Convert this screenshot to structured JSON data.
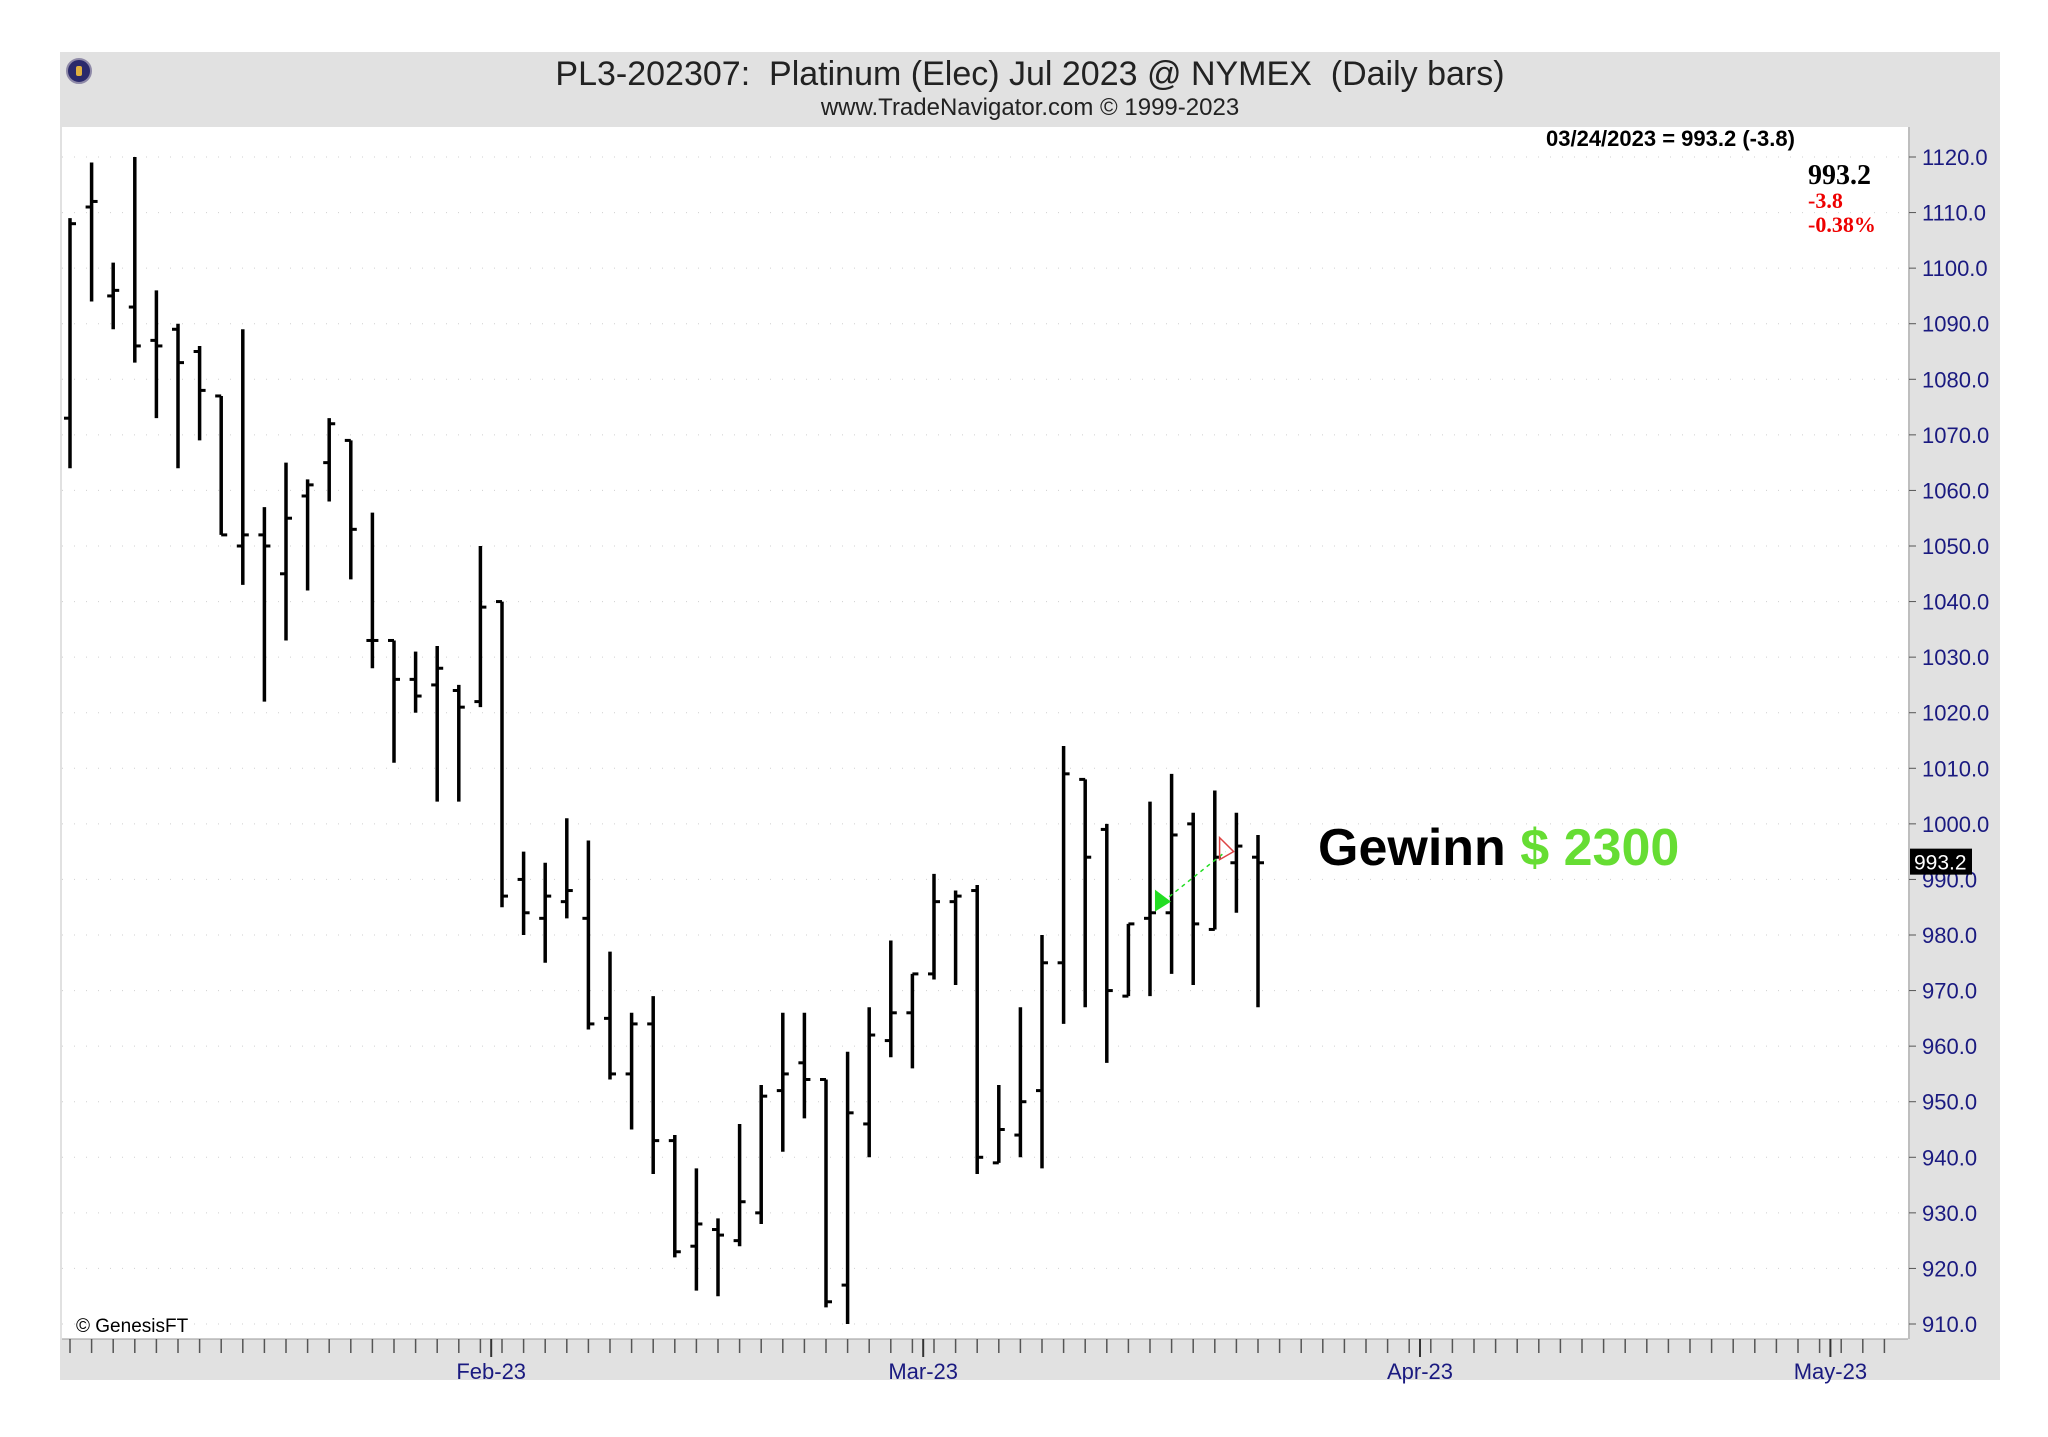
{
  "header": {
    "title": "PL3-202307:  Platinum (Elec) Jul 2023 @ NYMEX  (Daily bars)",
    "subtitle": "www.TradeNavigator.com © 1999-2023"
  },
  "readout": {
    "text": "03/24/2023 = 993.2 (-3.8)",
    "last_price": "993.2",
    "change": "-3.8",
    "change_pct": "-0.38%",
    "price_tag": "993.2"
  },
  "credit": "© GenesisFT",
  "annotation": {
    "label": "Gewinn",
    "value": "$ 2300"
  },
  "colors": {
    "bars": "#000000",
    "axis_text": "#1a1a80",
    "profit": "#66dd33",
    "negative": "#ee0000",
    "entry_marker": "#22dd22",
    "exit_marker": "#dd4444"
  },
  "chart_data": {
    "type": "ohlc",
    "title": "PL3-202307:  Platinum (Elec) Jul 2023 @ NYMEX  (Daily bars)",
    "xlabel": "",
    "ylabel": "",
    "ylim": [
      907,
      1126
    ],
    "y_ticks": [
      "1120.0",
      "1110.0",
      "1100.0",
      "1090.0",
      "1080.0",
      "1070.0",
      "1060.0",
      "1050.0",
      "1040.0",
      "1030.0",
      "1020.0",
      "1010.0",
      "1000.0",
      "990.0",
      "980.0",
      "970.0",
      "960.0",
      "950.0",
      "940.0",
      "930.0",
      "920.0",
      "910.0"
    ],
    "x_labels": [
      {
        "label": "Feb-23",
        "index": 19.5
      },
      {
        "label": "Mar-23",
        "index": 39.5
      },
      {
        "label": "Apr-23",
        "index": 62.5
      },
      {
        "label": "May-23",
        "index": 81.5
      }
    ],
    "grid": true,
    "bars": [
      {
        "o": 1073,
        "h": 1109,
        "l": 1064,
        "c": 1108
      },
      {
        "o": 1111,
        "h": 1119,
        "l": 1094,
        "c": 1112
      },
      {
        "o": 1095,
        "h": 1101,
        "l": 1089,
        "c": 1096
      },
      {
        "o": 1093,
        "h": 1120,
        "l": 1083,
        "c": 1086
      },
      {
        "o": 1087,
        "h": 1096,
        "l": 1073,
        "c": 1086
      },
      {
        "o": 1089,
        "h": 1090,
        "l": 1064,
        "c": 1083
      },
      {
        "o": 1085,
        "h": 1086,
        "l": 1069,
        "c": 1078
      },
      {
        "o": 1077,
        "h": 1077,
        "l": 1052,
        "c": 1052
      },
      {
        "o": 1050,
        "h": 1089,
        "l": 1043,
        "c": 1052
      },
      {
        "o": 1052,
        "h": 1057,
        "l": 1022,
        "c": 1050
      },
      {
        "o": 1045,
        "h": 1065,
        "l": 1033,
        "c": 1055
      },
      {
        "o": 1059,
        "h": 1062,
        "l": 1042,
        "c": 1061
      },
      {
        "o": 1065,
        "h": 1073,
        "l": 1058,
        "c": 1072
      },
      {
        "o": 1069,
        "h": 1069,
        "l": 1044,
        "c": 1053
      },
      {
        "o": 1033,
        "h": 1056,
        "l": 1028,
        "c": 1033
      },
      {
        "o": 1033,
        "h": 1033,
        "l": 1011,
        "c": 1026
      },
      {
        "o": 1026,
        "h": 1031,
        "l": 1020,
        "c": 1023
      },
      {
        "o": 1025,
        "h": 1032,
        "l": 1004,
        "c": 1028
      },
      {
        "o": 1024,
        "h": 1025,
        "l": 1004,
        "c": 1021
      },
      {
        "o": 1022,
        "h": 1050,
        "l": 1021,
        "c": 1039
      },
      {
        "o": 1040,
        "h": 1040,
        "l": 985,
        "c": 987
      },
      {
        "o": 990,
        "h": 995,
        "l": 980,
        "c": 984
      },
      {
        "o": 983,
        "h": 993,
        "l": 975,
        "c": 987
      },
      {
        "o": 986,
        "h": 1001,
        "l": 983,
        "c": 988
      },
      {
        "o": 983,
        "h": 997,
        "l": 963,
        "c": 964
      },
      {
        "o": 965,
        "h": 977,
        "l": 954,
        "c": 955
      },
      {
        "o": 955,
        "h": 966,
        "l": 945,
        "c": 964
      },
      {
        "o": 964,
        "h": 969,
        "l": 937,
        "c": 943
      },
      {
        "o": 943,
        "h": 944,
        "l": 922,
        "c": 923
      },
      {
        "o": 924,
        "h": 938,
        "l": 916,
        "c": 928
      },
      {
        "o": 927,
        "h": 929,
        "l": 915,
        "c": 926
      },
      {
        "o": 925,
        "h": 946,
        "l": 924,
        "c": 932
      },
      {
        "o": 930,
        "h": 953,
        "l": 928,
        "c": 951
      },
      {
        "o": 952,
        "h": 966,
        "l": 941,
        "c": 955
      },
      {
        "o": 957,
        "h": 966,
        "l": 947,
        "c": 954
      },
      {
        "o": 954,
        "h": 954,
        "l": 913,
        "c": 914
      },
      {
        "o": 917,
        "h": 959,
        "l": 910,
        "c": 948
      },
      {
        "o": 946,
        "h": 967,
        "l": 940,
        "c": 962
      },
      {
        "o": 961,
        "h": 979,
        "l": 958,
        "c": 966
      },
      {
        "o": 966,
        "h": 973,
        "l": 956,
        "c": 973
      },
      {
        "o": 973,
        "h": 991,
        "l": 972,
        "c": 986
      },
      {
        "o": 986,
        "h": 988,
        "l": 971,
        "c": 987
      },
      {
        "o": 988,
        "h": 989,
        "l": 937,
        "c": 940
      },
      {
        "o": 939,
        "h": 953,
        "l": 939,
        "c": 945
      },
      {
        "o": 944,
        "h": 967,
        "l": 940,
        "c": 950
      },
      {
        "o": 952,
        "h": 980,
        "l": 938,
        "c": 975
      },
      {
        "o": 975,
        "h": 1014,
        "l": 964,
        "c": 1009
      },
      {
        "o": 1008,
        "h": 1008,
        "l": 967,
        "c": 994
      },
      {
        "o": 999,
        "h": 1000,
        "l": 957,
        "c": 970
      },
      {
        "o": 969,
        "h": 982,
        "l": 969,
        "c": 982
      },
      {
        "o": 983,
        "h": 1004,
        "l": 969,
        "c": 984
      },
      {
        "o": 984,
        "h": 1009,
        "l": 973,
        "c": 998
      },
      {
        "o": 1000,
        "h": 1002,
        "l": 971,
        "c": 982
      },
      {
        "o": 981,
        "h": 1006,
        "l": 981,
        "c": 994
      },
      {
        "o": 993,
        "h": 1002,
        "l": 984,
        "c": 996
      },
      {
        "o": 994,
        "h": 998,
        "l": 967,
        "c": 993
      }
    ],
    "trade": {
      "entry": {
        "index": 50.6,
        "price": 986
      },
      "exit": {
        "index": 53.5,
        "price": 995
      }
    },
    "last_value": 993.2
  }
}
